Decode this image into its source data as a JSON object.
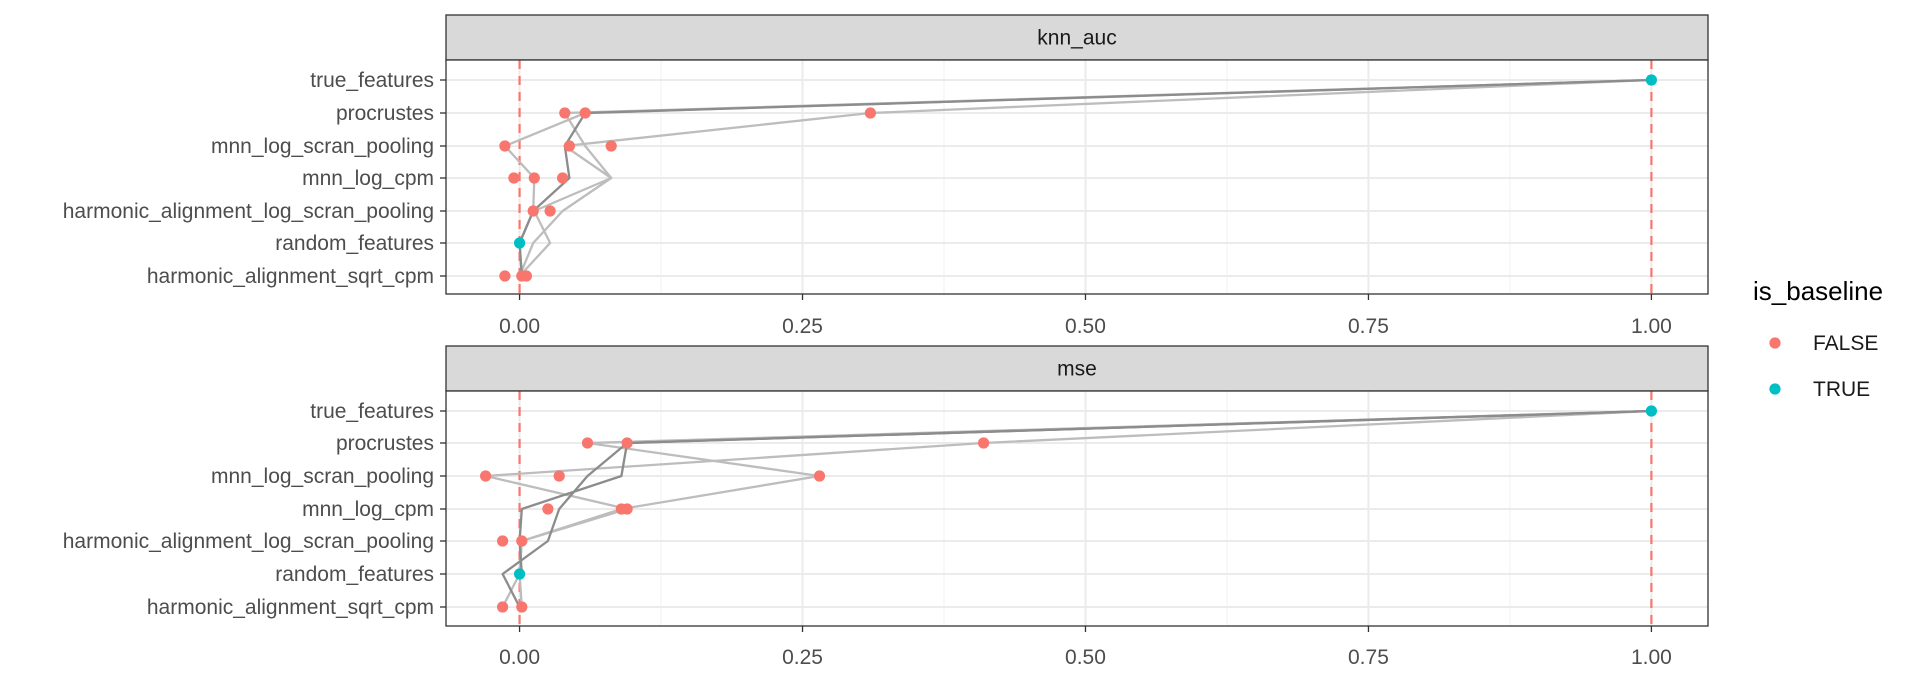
{
  "chart_data": {
    "type": "scatter",
    "categories": [
      "true_features",
      "procrustes",
      "mnn_log_scran_pooling",
      "mnn_log_cpm",
      "harmonic_alignment_log_scran_pooling",
      "random_features",
      "harmonic_alignment_sqrt_cpm"
    ],
    "xlim": [
      -0.065,
      1.05
    ],
    "x_ticks": [
      0.0,
      0.25,
      0.5,
      0.75,
      1.0
    ],
    "x_tick_labels": [
      "0.00",
      "0.25",
      "0.50",
      "0.75",
      "1.00"
    ],
    "minor_ticks": [
      0.125,
      0.375,
      0.625,
      0.875
    ],
    "reference_lines": [
      0,
      1
    ],
    "grid": true,
    "legend": {
      "title": "is_baseline",
      "placement": "right",
      "entries": [
        {
          "label": "FALSE",
          "color": "#F8766D"
        },
        {
          "label": "TRUE",
          "color": "#00BFC4"
        }
      ]
    },
    "colors": {
      "false": "#F8766D",
      "true": "#00BFC4",
      "ref_line": "#F8766D",
      "connector_dark": "#8c8c8c",
      "connector_light": "#bdbdbd",
      "strip_fill": "#d9d9d9",
      "panel_border": "#333333",
      "grid": "#ebebeb"
    },
    "panels": [
      {
        "title": "knn_auc",
        "points": [
          {
            "cat": "true_features",
            "x": 1.0,
            "baseline": true
          },
          {
            "cat": "procrustes",
            "x": 0.04,
            "baseline": false
          },
          {
            "cat": "procrustes",
            "x": 0.058,
            "baseline": false
          },
          {
            "cat": "procrustes",
            "x": 0.31,
            "baseline": false
          },
          {
            "cat": "mnn_log_scran_pooling",
            "x": -0.013,
            "baseline": false
          },
          {
            "cat": "mnn_log_scran_pooling",
            "x": 0.044,
            "baseline": false
          },
          {
            "cat": "mnn_log_scran_pooling",
            "x": 0.081,
            "baseline": false
          },
          {
            "cat": "mnn_log_cpm",
            "x": -0.005,
            "baseline": false
          },
          {
            "cat": "mnn_log_cpm",
            "x": 0.013,
            "baseline": false
          },
          {
            "cat": "mnn_log_cpm",
            "x": 0.038,
            "baseline": false
          },
          {
            "cat": "harmonic_alignment_log_scran_pooling",
            "x": 0.012,
            "baseline": false
          },
          {
            "cat": "harmonic_alignment_log_scran_pooling",
            "x": 0.027,
            "baseline": false
          },
          {
            "cat": "random_features",
            "x": 0.0,
            "baseline": true
          },
          {
            "cat": "harmonic_alignment_sqrt_cpm",
            "x": -0.013,
            "baseline": false
          },
          {
            "cat": "harmonic_alignment_sqrt_cpm",
            "x": 0.002,
            "baseline": false
          },
          {
            "cat": "harmonic_alignment_sqrt_cpm",
            "x": 0.006,
            "baseline": false
          }
        ],
        "connectors": [
          {
            "shade": "dark",
            "x": [
              1.0,
              0.058,
              0.04,
              0.044,
              0.012,
              0.0,
              0.002
            ]
          },
          {
            "shade": "light",
            "x": [
              1.0,
              0.31,
              0.04,
              0.081,
              0.013,
              0.027,
              0.0,
              0.006
            ]
          },
          {
            "shade": "light",
            "x": [
              1.0,
              0.04,
              0.058,
              0.081,
              0.038,
              0.012,
              0.0,
              -0.013
            ]
          },
          {
            "shade": "light",
            "x": [
              1.0,
              0.058,
              -0.013,
              0.013,
              0.012,
              0.0,
              0.002
            ]
          }
        ]
      },
      {
        "title": "mse",
        "points": [
          {
            "cat": "true_features",
            "x": 1.0,
            "baseline": true
          },
          {
            "cat": "procrustes",
            "x": 0.06,
            "baseline": false
          },
          {
            "cat": "procrustes",
            "x": 0.095,
            "baseline": false
          },
          {
            "cat": "procrustes",
            "x": 0.41,
            "baseline": false
          },
          {
            "cat": "mnn_log_scran_pooling",
            "x": -0.03,
            "baseline": false
          },
          {
            "cat": "mnn_log_scran_pooling",
            "x": 0.035,
            "baseline": false
          },
          {
            "cat": "mnn_log_scran_pooling",
            "x": 0.265,
            "baseline": false
          },
          {
            "cat": "mnn_log_cpm",
            "x": 0.025,
            "baseline": false
          },
          {
            "cat": "mnn_log_cpm",
            "x": 0.09,
            "baseline": false
          },
          {
            "cat": "mnn_log_cpm",
            "x": 0.095,
            "baseline": false
          },
          {
            "cat": "harmonic_alignment_log_scran_pooling",
            "x": -0.015,
            "baseline": false
          },
          {
            "cat": "harmonic_alignment_log_scran_pooling",
            "x": 0.002,
            "baseline": false
          },
          {
            "cat": "random_features",
            "x": 0.0,
            "baseline": true
          },
          {
            "cat": "harmonic_alignment_sqrt_cpm",
            "x": -0.015,
            "baseline": false
          },
          {
            "cat": "harmonic_alignment_sqrt_cpm",
            "x": 0.002,
            "baseline": false
          }
        ],
        "connectors": [
          {
            "shade": "dark",
            "x": [
              1.0,
              0.095,
              0.06,
              0.035,
              0.025,
              -0.015,
              0.0,
              -0.015
            ]
          },
          {
            "shade": "dark",
            "x": [
              1.0,
              0.095,
              0.09,
              0.002,
              0.0,
              0.002
            ]
          },
          {
            "shade": "light",
            "x": [
              1.0,
              0.41,
              -0.03,
              0.095,
              0.002,
              0.0,
              -0.015
            ]
          },
          {
            "shade": "light",
            "x": [
              1.0,
              0.06,
              0.265,
              0.09,
              0.002,
              0.0,
              0.002
            ]
          }
        ]
      }
    ]
  }
}
